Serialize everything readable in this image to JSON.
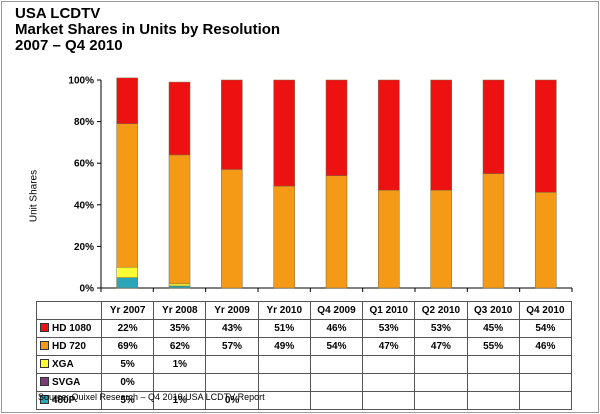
{
  "title_lines": [
    "USA LCDTV",
    "Market Shares in Units by Resolution",
    "2007 – Q4 2010"
  ],
  "source": "Source: Quixel Research – Q4 2010 USA LCDTV Report",
  "chart_data": {
    "type": "bar",
    "stacked": true,
    "categories": [
      "Yr 2007",
      "Yr 2008",
      "Yr 2009",
      "Yr 2010",
      "Q4 2009",
      "Q1 2010",
      "Q2 2010",
      "Q3 2010",
      "Q4 2010"
    ],
    "ylabel": "Unit Shares",
    "ylim": [
      0,
      100
    ],
    "yticks": [
      "0%",
      "20%",
      "40%",
      "60%",
      "80%",
      "100%"
    ],
    "grid": false,
    "legend": "data table rows",
    "series": [
      {
        "name": "480P",
        "color": "#2aa6b8",
        "values": [
          5,
          1,
          0,
          0,
          0,
          0,
          0,
          0,
          0
        ],
        "labels": [
          "5%",
          "1%",
          "0%",
          "",
          "",
          "",
          "",
          "",
          ""
        ]
      },
      {
        "name": "SVGA",
        "color": "#7a3c78",
        "values": [
          0,
          0,
          0,
          0,
          0,
          0,
          0,
          0,
          0
        ],
        "labels": [
          "0%",
          "",
          "",
          "",
          "",
          "",
          "",
          "",
          ""
        ]
      },
      {
        "name": "XGA",
        "color": "#ffff33",
        "values": [
          5,
          1,
          0,
          0,
          0,
          0,
          0,
          0,
          0
        ],
        "labels": [
          "5%",
          "1%",
          "",
          "",
          "",
          "",
          "",
          "",
          ""
        ]
      },
      {
        "name": "HD 720",
        "color": "#f59a16",
        "values": [
          69,
          62,
          57,
          49,
          54,
          47,
          47,
          55,
          46
        ],
        "labels": [
          "69%",
          "62%",
          "57%",
          "49%",
          "54%",
          "47%",
          "47%",
          "55%",
          "46%"
        ]
      },
      {
        "name": "HD 1080",
        "color": "#ee1111",
        "values": [
          22,
          35,
          43,
          51,
          46,
          53,
          53,
          45,
          54
        ],
        "labels": [
          "22%",
          "35%",
          "43%",
          "51%",
          "46%",
          "53%",
          "53%",
          "45%",
          "54%"
        ]
      }
    ],
    "table_order": [
      "HD 1080",
      "HD 720",
      "XGA",
      "SVGA",
      "480P"
    ]
  }
}
